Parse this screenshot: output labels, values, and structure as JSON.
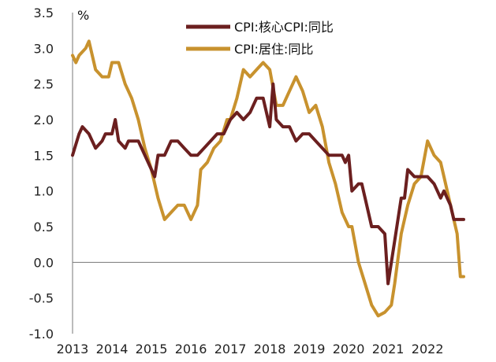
{
  "chart_data": {
    "type": "line",
    "title": "",
    "xlabel": "",
    "ylabel": "%",
    "ylim": [
      -1.0,
      3.5
    ],
    "y_ticks": [
      "3.5",
      "3.0",
      "2.5",
      "2.0",
      "1.5",
      "1.0",
      "0.5",
      "0.0",
      "-0.5",
      "-1.0"
    ],
    "x_ticks": [
      "2013",
      "2014",
      "2015",
      "2016",
      "2017",
      "2018",
      "2019",
      "2020",
      "2021",
      "2022"
    ],
    "x_range": [
      "2013-01",
      "2022-12"
    ],
    "grid": false,
    "legend_position": "top-center",
    "series": [
      {
        "name": "CPI:核心CPI:同比",
        "color": "#6b1f1f",
        "points": [
          [
            "2013-01",
            1.5
          ],
          [
            "2013-03",
            1.8
          ],
          [
            "2013-04",
            1.9
          ],
          [
            "2013-06",
            1.8
          ],
          [
            "2013-08",
            1.6
          ],
          [
            "2013-10",
            1.7
          ],
          [
            "2013-11",
            1.8
          ],
          [
            "2014-01",
            1.8
          ],
          [
            "2014-02",
            2.0
          ],
          [
            "2014-03",
            1.7
          ],
          [
            "2014-05",
            1.6
          ],
          [
            "2014-06",
            1.7
          ],
          [
            "2014-09",
            1.7
          ],
          [
            "2014-12",
            1.4
          ],
          [
            "2015-02",
            1.2
          ],
          [
            "2015-03",
            1.5
          ],
          [
            "2015-05",
            1.5
          ],
          [
            "2015-07",
            1.7
          ],
          [
            "2015-09",
            1.7
          ],
          [
            "2015-11",
            1.6
          ],
          [
            "2016-01",
            1.5
          ],
          [
            "2016-03",
            1.5
          ],
          [
            "2016-05",
            1.6
          ],
          [
            "2016-07",
            1.7
          ],
          [
            "2016-09",
            1.8
          ],
          [
            "2016-11",
            1.8
          ],
          [
            "2017-01",
            2.0
          ],
          [
            "2017-03",
            2.1
          ],
          [
            "2017-05",
            2.0
          ],
          [
            "2017-07",
            2.1
          ],
          [
            "2017-09",
            2.3
          ],
          [
            "2017-11",
            2.3
          ],
          [
            "2018-01",
            1.9
          ],
          [
            "2018-02",
            2.5
          ],
          [
            "2018-03",
            2.0
          ],
          [
            "2018-05",
            1.9
          ],
          [
            "2018-07",
            1.9
          ],
          [
            "2018-09",
            1.7
          ],
          [
            "2018-11",
            1.8
          ],
          [
            "2019-01",
            1.8
          ],
          [
            "2019-03",
            1.7
          ],
          [
            "2019-05",
            1.6
          ],
          [
            "2019-07",
            1.5
          ],
          [
            "2019-09",
            1.5
          ],
          [
            "2019-11",
            1.5
          ],
          [
            "2019-12",
            1.4
          ],
          [
            "2020-01",
            1.5
          ],
          [
            "2020-02",
            1.0
          ],
          [
            "2020-04",
            1.1
          ],
          [
            "2020-05",
            1.1
          ],
          [
            "2020-06",
            0.9
          ],
          [
            "2020-08",
            0.5
          ],
          [
            "2020-10",
            0.5
          ],
          [
            "2020-12",
            0.4
          ],
          [
            "2021-01",
            -0.3
          ],
          [
            "2021-02",
            0.0
          ],
          [
            "2021-03",
            0.3
          ],
          [
            "2021-05",
            0.9
          ],
          [
            "2021-06",
            0.9
          ],
          [
            "2021-07",
            1.3
          ],
          [
            "2021-09",
            1.2
          ],
          [
            "2021-11",
            1.2
          ],
          [
            "2022-01",
            1.2
          ],
          [
            "2022-03",
            1.1
          ],
          [
            "2022-05",
            0.9
          ],
          [
            "2022-06",
            1.0
          ],
          [
            "2022-08",
            0.8
          ],
          [
            "2022-09",
            0.6
          ],
          [
            "2022-12",
            0.6
          ]
        ]
      },
      {
        "name": "CPI:居住:同比",
        "color": "#c8922e",
        "points": [
          [
            "2013-01",
            2.9
          ],
          [
            "2013-02",
            2.8
          ],
          [
            "2013-03",
            2.9
          ],
          [
            "2013-05",
            3.0
          ],
          [
            "2013-06",
            3.1
          ],
          [
            "2013-08",
            2.7
          ],
          [
            "2013-10",
            2.6
          ],
          [
            "2013-12",
            2.6
          ],
          [
            "2014-01",
            2.8
          ],
          [
            "2014-03",
            2.8
          ],
          [
            "2014-05",
            2.5
          ],
          [
            "2014-07",
            2.3
          ],
          [
            "2014-09",
            2.0
          ],
          [
            "2014-11",
            1.6
          ],
          [
            "2015-01",
            1.3
          ],
          [
            "2015-03",
            0.9
          ],
          [
            "2015-05",
            0.6
          ],
          [
            "2015-07",
            0.7
          ],
          [
            "2015-09",
            0.8
          ],
          [
            "2015-11",
            0.8
          ],
          [
            "2016-01",
            0.6
          ],
          [
            "2016-03",
            0.8
          ],
          [
            "2016-04",
            1.3
          ],
          [
            "2016-06",
            1.4
          ],
          [
            "2016-08",
            1.6
          ],
          [
            "2016-10",
            1.7
          ],
          [
            "2016-12",
            2.0
          ],
          [
            "2017-01",
            2.0
          ],
          [
            "2017-03",
            2.3
          ],
          [
            "2017-05",
            2.7
          ],
          [
            "2017-07",
            2.6
          ],
          [
            "2017-09",
            2.7
          ],
          [
            "2017-11",
            2.8
          ],
          [
            "2018-01",
            2.7
          ],
          [
            "2018-03",
            2.2
          ],
          [
            "2018-05",
            2.2
          ],
          [
            "2018-07",
            2.4
          ],
          [
            "2018-09",
            2.6
          ],
          [
            "2018-11",
            2.4
          ],
          [
            "2019-01",
            2.1
          ],
          [
            "2019-03",
            2.2
          ],
          [
            "2019-05",
            1.9
          ],
          [
            "2019-07",
            1.4
          ],
          [
            "2019-09",
            1.1
          ],
          [
            "2019-11",
            0.7
          ],
          [
            "2020-01",
            0.5
          ],
          [
            "2020-02",
            0.5
          ],
          [
            "2020-04",
            0.0
          ],
          [
            "2020-06",
            -0.3
          ],
          [
            "2020-08",
            -0.6
          ],
          [
            "2020-10",
            -0.75
          ],
          [
            "2020-12",
            -0.7
          ],
          [
            "2021-02",
            -0.6
          ],
          [
            "2021-03",
            -0.3
          ],
          [
            "2021-05",
            0.4
          ],
          [
            "2021-07",
            0.8
          ],
          [
            "2021-09",
            1.1
          ],
          [
            "2021-11",
            1.2
          ],
          [
            "2022-01",
            1.7
          ],
          [
            "2022-03",
            1.5
          ],
          [
            "2022-05",
            1.4
          ],
          [
            "2022-06",
            1.2
          ],
          [
            "2022-08",
            0.8
          ],
          [
            "2022-09",
            0.6
          ],
          [
            "2022-10",
            0.4
          ],
          [
            "2022-11",
            -0.2
          ],
          [
            "2022-12",
            -0.2
          ]
        ]
      }
    ]
  }
}
